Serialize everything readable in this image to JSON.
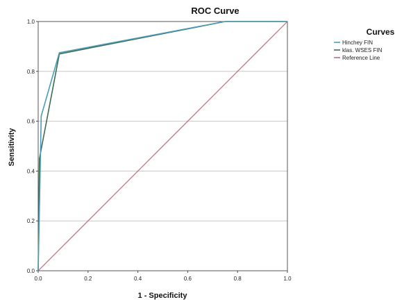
{
  "chart_data": {
    "type": "line",
    "title": "ROC Curve",
    "xlabel": "1 - Specificity",
    "ylabel": "Sensitivity",
    "xlim": [
      0.0,
      1.0
    ],
    "ylim": [
      0.0,
      1.0
    ],
    "xticks": [
      "0.0",
      "0.2",
      "0.4",
      "0.6",
      "0.8",
      "1.0"
    ],
    "yticks": [
      "0.0",
      "0.2",
      "0.4",
      "0.6",
      "0.8",
      "1.0"
    ],
    "grid": "horizontal",
    "legend_title": "Curves",
    "legend_position": "right",
    "series": [
      {
        "name": "Hinchey FIN",
        "color": "#4a9cb8",
        "x": [
          0.0,
          0.008,
          0.012,
          0.085,
          0.75,
          1.0
        ],
        "y": [
          0.0,
          0.4,
          0.62,
          0.875,
          1.0,
          1.0
        ]
      },
      {
        "name": "klas. WSES FIN",
        "color": "#3c6b52",
        "x": [
          0.0,
          0.005,
          0.085,
          0.75,
          1.0
        ],
        "y": [
          0.0,
          0.45,
          0.87,
          1.0,
          1.0
        ]
      },
      {
        "name": "Reference Line",
        "color": "#b5707c",
        "x": [
          0.0,
          1.0
        ],
        "y": [
          0.0,
          1.0
        ]
      }
    ]
  }
}
